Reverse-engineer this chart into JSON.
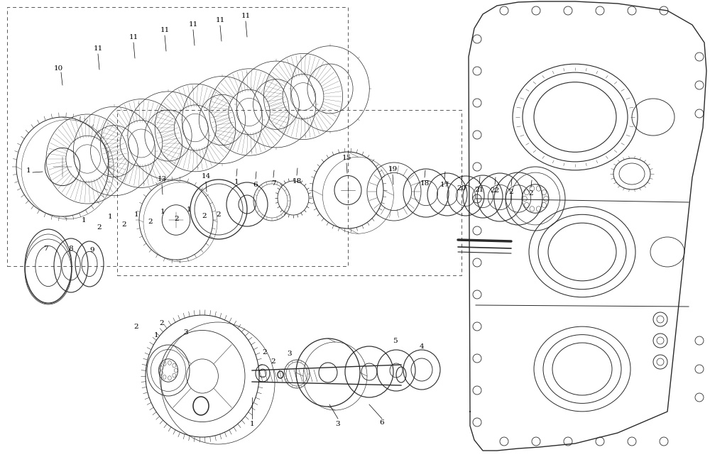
{
  "bg_color": "#ffffff",
  "lc": "#2a2a2a",
  "fig_width": 10.0,
  "fig_height": 6.44,
  "dpi": 100
}
